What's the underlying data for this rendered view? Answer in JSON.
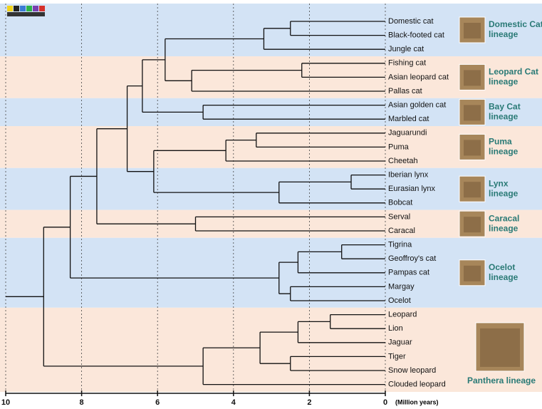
{
  "chart_data": {
    "type": "tree",
    "xlim": [
      10,
      0
    ],
    "xticks": [
      10,
      8,
      6,
      4,
      2,
      0
    ],
    "xlabel": "(Million years)",
    "grid": true,
    "tree": {
      "age": 9.0,
      "children": [
        {
          "age": 8.3,
          "children": [
            {
              "age": 7.6,
              "children": [
                {
                  "age": 6.8,
                  "children": [
                    {
                      "age": 6.4,
                      "children": [
                        {
                          "age": 5.8,
                          "children": [
                            {
                              "age": 3.2,
                              "children": [
                                {
                                  "age": 2.5,
                                  "children": [
                                    {
                                      "name": "Domestic cat"
                                    },
                                    {
                                      "name": "Black-footed cat"
                                    }
                                  ]
                                },
                                {
                                  "name": "Jungle cat"
                                }
                              ]
                            },
                            {
                              "age": 5.1,
                              "children": [
                                {
                                  "age": 2.2,
                                  "children": [
                                    {
                                      "name": "Fishing cat"
                                    },
                                    {
                                      "name": "Asian leopard cat"
                                    }
                                  ]
                                },
                                {
                                  "name": "Pallas cat"
                                }
                              ]
                            }
                          ]
                        },
                        {
                          "age": 4.8,
                          "children": [
                            {
                              "name": "Asian golden cat"
                            },
                            {
                              "name": "Marbled cat"
                            }
                          ]
                        }
                      ]
                    },
                    {
                      "age": 6.1,
                      "children": [
                        {
                          "age": 4.2,
                          "children": [
                            {
                              "age": 3.4,
                              "children": [
                                {
                                  "name": "Jaguarundi"
                                },
                                {
                                  "name": "Puma"
                                }
                              ]
                            },
                            {
                              "name": "Cheetah"
                            }
                          ]
                        },
                        {
                          "age": 2.8,
                          "children": [
                            {
                              "age": 0.9,
                              "children": [
                                {
                                  "name": "Iberian lynx"
                                },
                                {
                                  "name": "Eurasian lynx"
                                }
                              ]
                            },
                            {
                              "name": "Bobcat"
                            }
                          ]
                        }
                      ]
                    }
                  ]
                },
                {
                  "age": 5.0,
                  "children": [
                    {
                      "name": "Serval"
                    },
                    {
                      "name": "Caracal"
                    }
                  ]
                }
              ]
            },
            {
              "age": 2.8,
              "children": [
                {
                  "age": 2.3,
                  "children": [
                    {
                      "age": 1.15,
                      "children": [
                        {
                          "name": "Tigrina"
                        },
                        {
                          "name": "Geoffroy's cat"
                        }
                      ]
                    },
                    {
                      "name": "Pampas cat"
                    }
                  ]
                },
                {
                  "age": 2.5,
                  "children": [
                    {
                      "name": "Margay"
                    },
                    {
                      "name": "Ocelot"
                    }
                  ]
                }
              ]
            }
          ]
        },
        {
          "age": 4.8,
          "children": [
            {
              "age": 3.3,
              "children": [
                {
                  "age": 2.3,
                  "children": [
                    {
                      "age": 1.45,
                      "children": [
                        {
                          "name": "Leopard"
                        },
                        {
                          "name": "Lion"
                        }
                      ]
                    },
                    {
                      "name": "Jaguar"
                    }
                  ]
                },
                {
                  "age": 2.5,
                  "children": [
                    {
                      "name": "Tiger"
                    },
                    {
                      "name": "Snow leopard"
                    }
                  ]
                }
              ]
            },
            {
              "name": "Clouded leopard"
            }
          ]
        }
      ]
    },
    "lineages": [
      {
        "lines": [
          "Domestic Cat",
          "lineage"
        ]
      },
      {
        "lines": [
          "Leopard Cat",
          "lineage"
        ]
      },
      {
        "lines": [
          "Bay Cat",
          "lineage"
        ]
      },
      {
        "lines": [
          "Puma",
          "lineage"
        ]
      },
      {
        "lines": [
          "Lynx",
          "lineage"
        ]
      },
      {
        "lines": [
          "Caracal",
          "lineage"
        ]
      },
      {
        "lines": [
          "Ocelot",
          "lineage"
        ]
      },
      {
        "lines": [
          "Panthera  lineage"
        ]
      }
    ]
  }
}
